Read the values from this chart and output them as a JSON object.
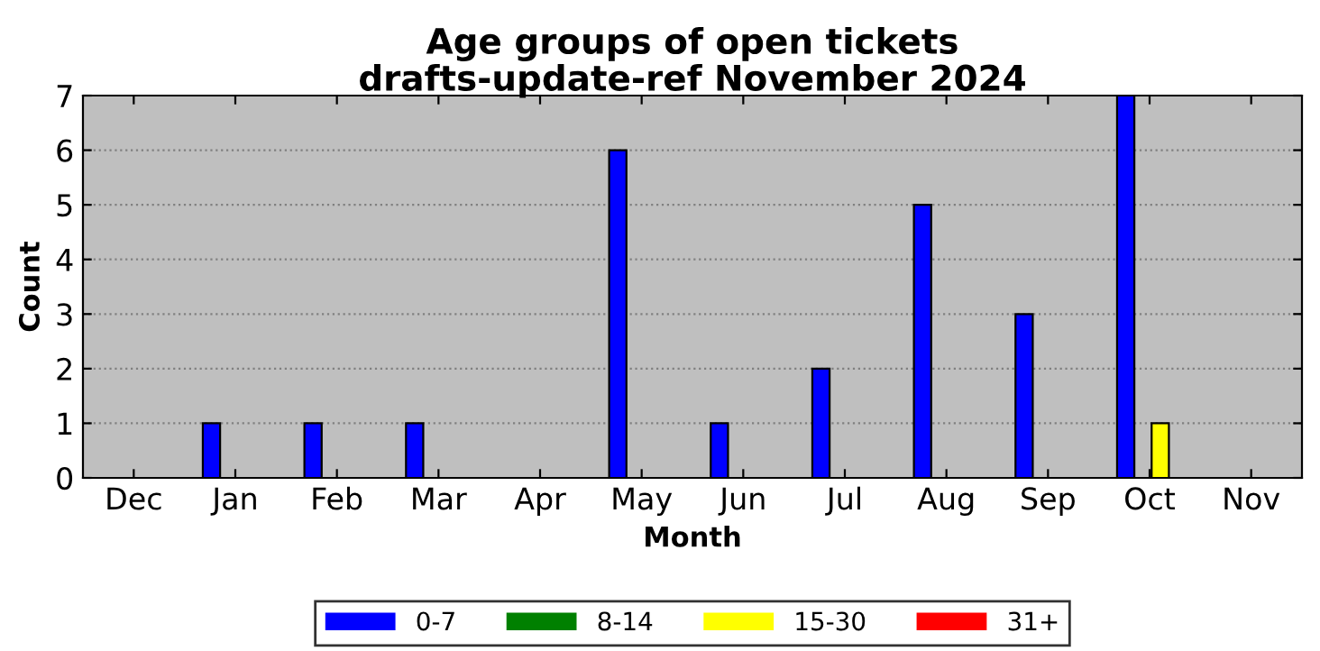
{
  "chart_data": {
    "type": "bar",
    "title": "Age groups of open tickets\ndrafts-update-ref November 2024",
    "xlabel": "Month",
    "ylabel": "Count",
    "categories": [
      "Dec",
      "Jan",
      "Feb",
      "Mar",
      "Apr",
      "May",
      "Jun",
      "Jul",
      "Aug",
      "Sep",
      "Oct",
      "Nov"
    ],
    "series": [
      {
        "name": "0-7",
        "color": "#0000ff",
        "values": [
          0,
          1,
          1,
          1,
          0,
          6,
          1,
          2,
          5,
          3,
          7,
          0
        ]
      },
      {
        "name": "8-14",
        "color": "#008000",
        "values": [
          0,
          0,
          0,
          0,
          0,
          0,
          0,
          0,
          0,
          0,
          0,
          0
        ]
      },
      {
        "name": "15-30",
        "color": "#ffff00",
        "values": [
          0,
          0,
          0,
          0,
          0,
          0,
          0,
          0,
          0,
          0,
          1,
          0
        ]
      },
      {
        "name": "31+",
        "color": "#ff0000",
        "values": [
          0,
          0,
          0,
          0,
          0,
          0,
          0,
          0,
          0,
          0,
          0,
          0
        ]
      }
    ],
    "ylim": [
      0,
      7
    ],
    "yticks": [
      0,
      1,
      2,
      3,
      4,
      5,
      6,
      7
    ],
    "grid": "y",
    "legend": "bottom"
  }
}
